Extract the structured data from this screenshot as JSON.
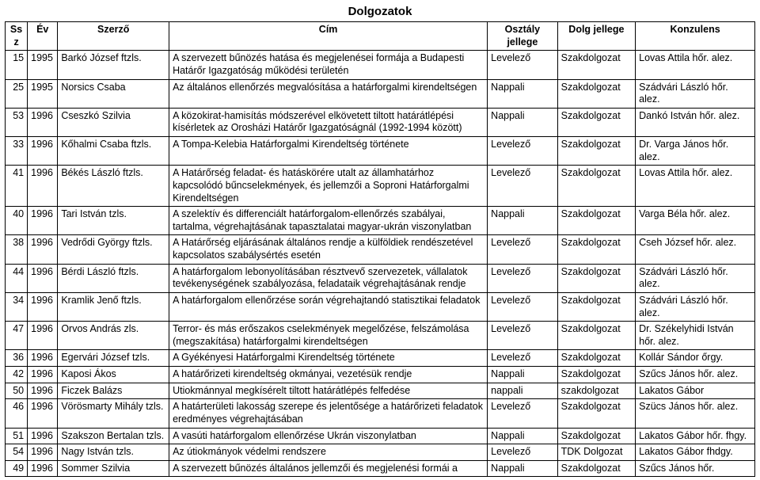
{
  "title": "Dolgozatok",
  "columns": [
    "Ssz",
    "Év",
    "Szerző",
    "Cím",
    "Osztály jellege",
    "Dolg jellege",
    "Konzulens"
  ],
  "rows": [
    {
      "ssz": "15",
      "ev": "1995",
      "szerzo": "Barkó József ftzls.",
      "cim": "A szervezett bűnözés hatása és megjelenései formája a Budapesti Határőr Igazgatóság működési területén",
      "osztaly": "Levelező",
      "dolg": "Szakdolgozat",
      "konz": "Lovas Attila hőr. alez."
    },
    {
      "ssz": "25",
      "ev": "1995",
      "szerzo": "Norsics Csaba",
      "cim": "Az általános ellenőrzés megvalósítása a határforgalmi kirendeltségen",
      "osztaly": "Nappali",
      "dolg": "Szakdolgozat",
      "konz": "Szádvári László hőr. alez."
    },
    {
      "ssz": "53",
      "ev": "1996",
      "szerzo": "Cseszkó Szilvia",
      "cim": "A közokirat-hamisítás módszerével elkövetett tiltott határátlépési kísérletek az Orosházi Határőr Igazgatóságnál (1992-1994 között)",
      "osztaly": "Nappali",
      "dolg": "Szakdolgozat",
      "konz": "Dankó István hőr. alez."
    },
    {
      "ssz": "33",
      "ev": "1996",
      "szerzo": "Kőhalmi Csaba ftzls.",
      "cim": "A Tompa-Kelebia Határforgalmi Kirendeltség története",
      "osztaly": "Levelező",
      "dolg": "Szakdolgozat",
      "konz": "Dr. Varga János hőr. alez."
    },
    {
      "ssz": "41",
      "ev": "1996",
      "szerzo": "Békés László ftzls.",
      "cim": "A Határőrség feladat- és hatáskörére utalt az államhatárhoz kapcsolódó bűncselekmények, és jellemzői a Soproni Határforgalmi Kirendeltségen",
      "osztaly": "Levelező",
      "dolg": "Szakdolgozat",
      "konz": "Lovas Attila hőr. alez."
    },
    {
      "ssz": "40",
      "ev": "1996",
      "szerzo": "Tari István tzls.",
      "cim": "A szelektív és differenciált határforgalom-ellenőrzés szabályai, tartalma, végrehajtásának tapasztalatai magyar-ukrán viszonylatban",
      "osztaly": "Nappali",
      "dolg": "Szakdolgozat",
      "konz": "Varga Béla hőr. alez."
    },
    {
      "ssz": "38",
      "ev": "1996",
      "szerzo": "Vedrődi György ftzls.",
      "cim": "A Határőrség eljárásának általános rendje a külföldiek rendészetével kapcsolatos szabálysértés esetén",
      "osztaly": "Levelező",
      "dolg": "Szakdolgozat",
      "konz": "Cseh József hőr. alez."
    },
    {
      "ssz": "44",
      "ev": "1996",
      "szerzo": "Bérdi László ftzls.",
      "cim": "A határforgalom lebonyolításában résztvevő szervezetek, vállalatok tevékenységének szabályozása, feladataik végrehajtásának rendje",
      "osztaly": "Levelező",
      "dolg": "Szakdolgozat",
      "konz": "Szádvári László hőr. alez."
    },
    {
      "ssz": "34",
      "ev": "1996",
      "szerzo": "Kramlik Jenő ftzls.",
      "cim": "A határforgalom ellenőrzése során végrehajtandó statisztikai feladatok",
      "osztaly": "Levelező",
      "dolg": "Szakdolgozat",
      "konz": "Szádvári László hőr. alez."
    },
    {
      "ssz": "47",
      "ev": "1996",
      "szerzo": "Orvos András zls.",
      "cim": "Terror- és más erőszakos cselekmények megelőzése, felszámolása (megszakítása) határforgalmi kirendeltségen",
      "osztaly": "Levelező",
      "dolg": "Szakdolgozat",
      "konz": "Dr. Székelyhidi István hőr. alez."
    },
    {
      "ssz": "36",
      "ev": "1996",
      "szerzo": "Egervári József tzls.",
      "cim": "A Gyékényesi Határforgalmi Kirendeltség története",
      "osztaly": "Levelező",
      "dolg": "Szakdolgozat",
      "konz": "Kollár Sándor őrgy."
    },
    {
      "ssz": "42",
      "ev": "1996",
      "szerzo": "Kaposi Ákos",
      "cim": "A határőrizeti kirendeltség okmányai, vezetésük rendje",
      "osztaly": "Nappali",
      "dolg": "Szakdolgozat",
      "konz": "Szűcs János hőr. alez."
    },
    {
      "ssz": "50",
      "ev": "1996",
      "szerzo": "Ficzek Balázs",
      "cim": "Utiokmánnyal megkísérelt tiltott határátlépés felfedése",
      "osztaly": "nappali",
      "dolg": "szakdolgozat",
      "konz": "Lakatos Gábor"
    },
    {
      "ssz": "46",
      "ev": "1996",
      "szerzo": "Vörösmarty Mihály tzls.",
      "cim": "A határterületi lakosság szerepe és jelentősége a határőrizeti feladatok eredményes végrehajtásában",
      "osztaly": "Levelező",
      "dolg": "Szakdolgozat",
      "konz": "Szücs János hőr. alez."
    },
    {
      "ssz": "51",
      "ev": "1996",
      "szerzo": "Szakszon Bertalan tzls.",
      "cim": "A vasúti határforgalom ellenőrzése Ukrán viszonylatban",
      "osztaly": "Nappali",
      "dolg": "Szakdolgozat",
      "konz": "Lakatos Gábor hőr. fhgy."
    },
    {
      "ssz": "54",
      "ev": "1996",
      "szerzo": "Nagy István tzls.",
      "cim": "Az útiokmányok védelmi rendszere",
      "osztaly": "Levelező",
      "dolg": "TDK Dolgozat",
      "konz": "Lakatos Gábor fhdgy."
    },
    {
      "ssz": "49",
      "ev": "1996",
      "szerzo": "Sommer Szilvia",
      "cim": "A szervezett bűnözés általános jellemzői és megjelenési formái a",
      "osztaly": "Nappali",
      "dolg": "Szakdolgozat",
      "konz": "Szűcs János hőr."
    }
  ]
}
